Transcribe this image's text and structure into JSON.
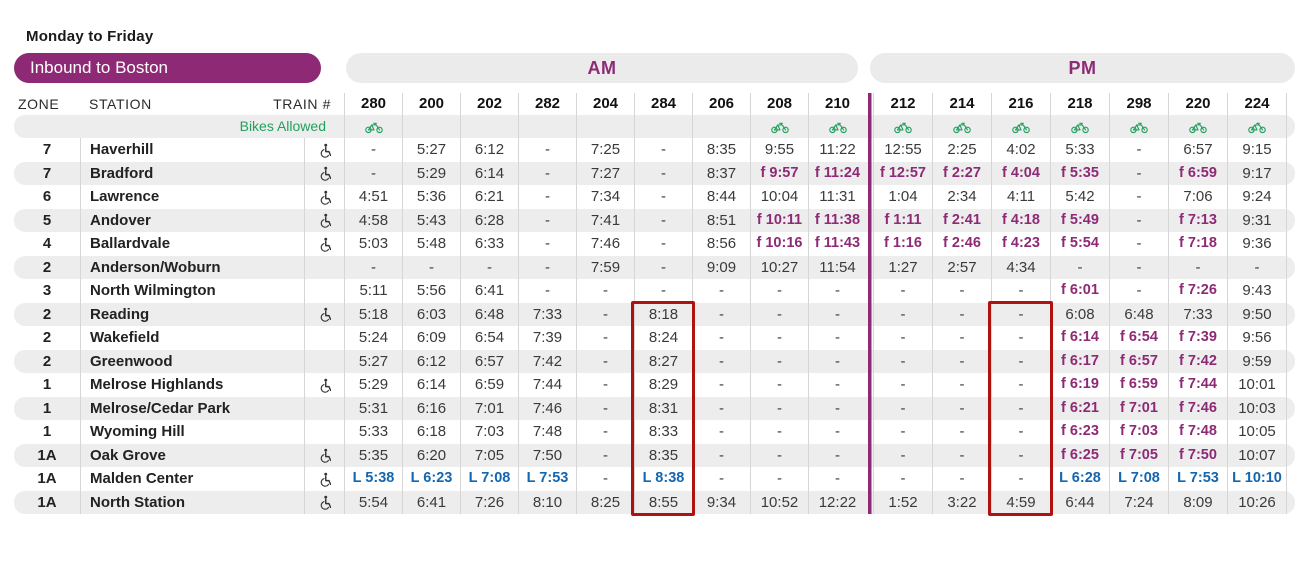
{
  "page": {
    "schedule_days": "Monday to Friday",
    "direction": "Inbound to Boston"
  },
  "table_header": {
    "zone": "ZONE",
    "station": "STATION",
    "train": "TRAIN #",
    "bikes": "Bikes Allowed",
    "am": "AM",
    "pm": "PM"
  },
  "colors": {
    "purple": "#8e2a75",
    "green": "#21a05e",
    "blue": "#1366b0",
    "highlight_red": "#b01111",
    "stripe": "#ededed"
  },
  "trains_am": [
    {
      "number": "280",
      "bikes": true
    },
    {
      "number": "200",
      "bikes": false
    },
    {
      "number": "202",
      "bikes": false
    },
    {
      "number": "282",
      "bikes": false
    },
    {
      "number": "204",
      "bikes": false
    },
    {
      "number": "284",
      "bikes": false
    },
    {
      "number": "206",
      "bikes": false
    },
    {
      "number": "208",
      "bikes": true
    },
    {
      "number": "210",
      "bikes": true
    }
  ],
  "trains_pm": [
    {
      "number": "212",
      "bikes": true
    },
    {
      "number": "214",
      "bikes": true
    },
    {
      "number": "216",
      "bikes": true
    },
    {
      "number": "218",
      "bikes": true
    },
    {
      "number": "298",
      "bikes": true
    },
    {
      "number": "220",
      "bikes": true
    },
    {
      "number": "224",
      "bikes": true
    }
  ],
  "stations": [
    {
      "zone": "7",
      "name": "Haverhill",
      "accessible": true,
      "am": [
        "-",
        "5:27",
        "6:12",
        "-",
        "7:25",
        "-",
        "8:35",
        "9:55",
        "11:22"
      ],
      "pm": [
        "12:55",
        "2:25",
        "4:02",
        "5:33",
        "-",
        "6:57",
        "9:15"
      ]
    },
    {
      "zone": "7",
      "name": "Bradford",
      "accessible": true,
      "am": [
        "-",
        "5:29",
        "6:14",
        "-",
        "7:27",
        "-",
        "8:37",
        "f 9:57",
        "f 11:24"
      ],
      "pm": [
        "f 12:57",
        "f 2:27",
        "f 4:04",
        "f 5:35",
        "-",
        "f 6:59",
        "9:17"
      ]
    },
    {
      "zone": "6",
      "name": "Lawrence",
      "accessible": true,
      "am": [
        "4:51",
        "5:36",
        "6:21",
        "-",
        "7:34",
        "-",
        "8:44",
        "10:04",
        "11:31"
      ],
      "pm": [
        "1:04",
        "2:34",
        "4:11",
        "5:42",
        "-",
        "7:06",
        "9:24"
      ]
    },
    {
      "zone": "5",
      "name": "Andover",
      "accessible": true,
      "am": [
        "4:58",
        "5:43",
        "6:28",
        "-",
        "7:41",
        "-",
        "8:51",
        "f 10:11",
        "f 11:38"
      ],
      "pm": [
        "f 1:11",
        "f 2:41",
        "f 4:18",
        "f 5:49",
        "-",
        "f 7:13",
        "9:31"
      ]
    },
    {
      "zone": "4",
      "name": "Ballardvale",
      "accessible": true,
      "am": [
        "5:03",
        "5:48",
        "6:33",
        "-",
        "7:46",
        "-",
        "8:56",
        "f 10:16",
        "f 11:43"
      ],
      "pm": [
        "f 1:16",
        "f 2:46",
        "f 4:23",
        "f 5:54",
        "-",
        "f 7:18",
        "9:36"
      ]
    },
    {
      "zone": "2",
      "name": "Anderson/Woburn",
      "accessible": false,
      "am": [
        "-",
        "-",
        "-",
        "-",
        "7:59",
        "-",
        "9:09",
        "10:27",
        "11:54"
      ],
      "pm": [
        "1:27",
        "2:57",
        "4:34",
        "-",
        "-",
        "-",
        "-"
      ]
    },
    {
      "zone": "3",
      "name": "North Wilmington",
      "accessible": false,
      "am": [
        "5:11",
        "5:56",
        "6:41",
        "-",
        "-",
        "-",
        "-",
        "-",
        "-"
      ],
      "pm": [
        "-",
        "-",
        "-",
        "f 6:01",
        "-",
        "f 7:26",
        "9:43"
      ]
    },
    {
      "zone": "2",
      "name": "Reading",
      "accessible": true,
      "am": [
        "5:18",
        "6:03",
        "6:48",
        "7:33",
        "-",
        "8:18",
        "-",
        "-",
        "-"
      ],
      "pm": [
        "-",
        "-",
        "-",
        "6:08",
        "6:48",
        "7:33",
        "9:50"
      ]
    },
    {
      "zone": "2",
      "name": "Wakefield",
      "accessible": false,
      "am": [
        "5:24",
        "6:09",
        "6:54",
        "7:39",
        "-",
        "8:24",
        "-",
        "-",
        "-"
      ],
      "pm": [
        "-",
        "-",
        "-",
        "f 6:14",
        "f 6:54",
        "f 7:39",
        "9:56"
      ]
    },
    {
      "zone": "2",
      "name": "Greenwood",
      "accessible": false,
      "am": [
        "5:27",
        "6:12",
        "6:57",
        "7:42",
        "-",
        "8:27",
        "-",
        "-",
        "-"
      ],
      "pm": [
        "-",
        "-",
        "-",
        "f 6:17",
        "f 6:57",
        "f 7:42",
        "9:59"
      ]
    },
    {
      "zone": "1",
      "name": "Melrose Highlands",
      "accessible": true,
      "am": [
        "5:29",
        "6:14",
        "6:59",
        "7:44",
        "-",
        "8:29",
        "-",
        "-",
        "-"
      ],
      "pm": [
        "-",
        "-",
        "-",
        "f 6:19",
        "f 6:59",
        "f 7:44",
        "10:01"
      ]
    },
    {
      "zone": "1",
      "name": "Melrose/Cedar Park",
      "accessible": false,
      "am": [
        "5:31",
        "6:16",
        "7:01",
        "7:46",
        "-",
        "8:31",
        "-",
        "-",
        "-"
      ],
      "pm": [
        "-",
        "-",
        "-",
        "f 6:21",
        "f 7:01",
        "f 7:46",
        "10:03"
      ]
    },
    {
      "zone": "1",
      "name": "Wyoming Hill",
      "accessible": false,
      "am": [
        "5:33",
        "6:18",
        "7:03",
        "7:48",
        "-",
        "8:33",
        "-",
        "-",
        "-"
      ],
      "pm": [
        "-",
        "-",
        "-",
        "f 6:23",
        "f 7:03",
        "f 7:48",
        "10:05"
      ]
    },
    {
      "zone": "1A",
      "name": "Oak Grove",
      "accessible": true,
      "am": [
        "5:35",
        "6:20",
        "7:05",
        "7:50",
        "-",
        "8:35",
        "-",
        "-",
        "-"
      ],
      "pm": [
        "-",
        "-",
        "-",
        "f 6:25",
        "f 7:05",
        "f 7:50",
        "10:07"
      ]
    },
    {
      "zone": "1A",
      "name": "Malden Center",
      "accessible": true,
      "am": [
        "L 5:38",
        "L 6:23",
        "L 7:08",
        "L 7:53",
        "-",
        "L 8:38",
        "-",
        "-",
        "-"
      ],
      "pm": [
        "-",
        "-",
        "-",
        "L 6:28",
        "L 7:08",
        "L 7:53",
        "L 10:10"
      ]
    },
    {
      "zone": "1A",
      "name": "North Station",
      "accessible": true,
      "am": [
        "5:54",
        "6:41",
        "7:26",
        "8:10",
        "8:25",
        "8:55",
        "9:34",
        "10:52",
        "12:22"
      ],
      "pm": [
        "1:52",
        "3:22",
        "4:59",
        "6:44",
        "7:24",
        "8:09",
        "10:26"
      ]
    }
  ],
  "highlights": [
    {
      "period": "am",
      "train": "284",
      "from_station": "Reading",
      "to_station": "North Station"
    },
    {
      "period": "pm",
      "train": "216",
      "from_station": "Reading",
      "to_station": "North Station"
    }
  ]
}
